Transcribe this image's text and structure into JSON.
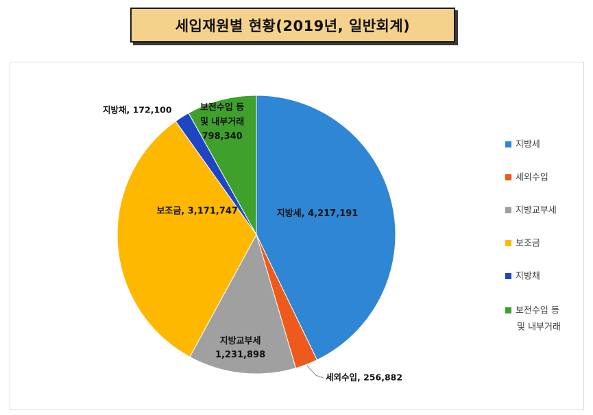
{
  "title": "세입재원별  현황(2019년, 일반회계)",
  "chart_data": {
    "type": "pie",
    "title": "세입재원별  현황(2019년, 일반회계)",
    "categories": [
      "지방세",
      "세외수입",
      "지방교부세",
      "보조금",
      "지방채",
      "보전수입 등 및 내부거래"
    ],
    "values": [
      4217191,
      256882,
      1231898,
      3171747,
      172100,
      798340
    ],
    "colors": [
      "#2e86d4",
      "#ee5a1c",
      "#a0a0a0",
      "#ffb800",
      "#1f45c4",
      "#3fa12c"
    ],
    "data_labels": [
      [
        "지방세, 4,217,191"
      ],
      [
        "세외수입, 256,882"
      ],
      [
        "지방교부세",
        "1,231,898"
      ],
      [
        "보조금, 3,171,747"
      ],
      [
        "지방채, 172,100"
      ],
      [
        "보전수입 등",
        "및 내부거래",
        "798,340"
      ]
    ],
    "legend": {
      "position": "right",
      "entries": [
        [
          "지방세"
        ],
        [
          "세외수입"
        ],
        [
          "지방교부세"
        ],
        [
          "보조금"
        ],
        [
          "지방채"
        ],
        [
          "보전수입 등",
          "및 내부거래"
        ]
      ]
    }
  }
}
